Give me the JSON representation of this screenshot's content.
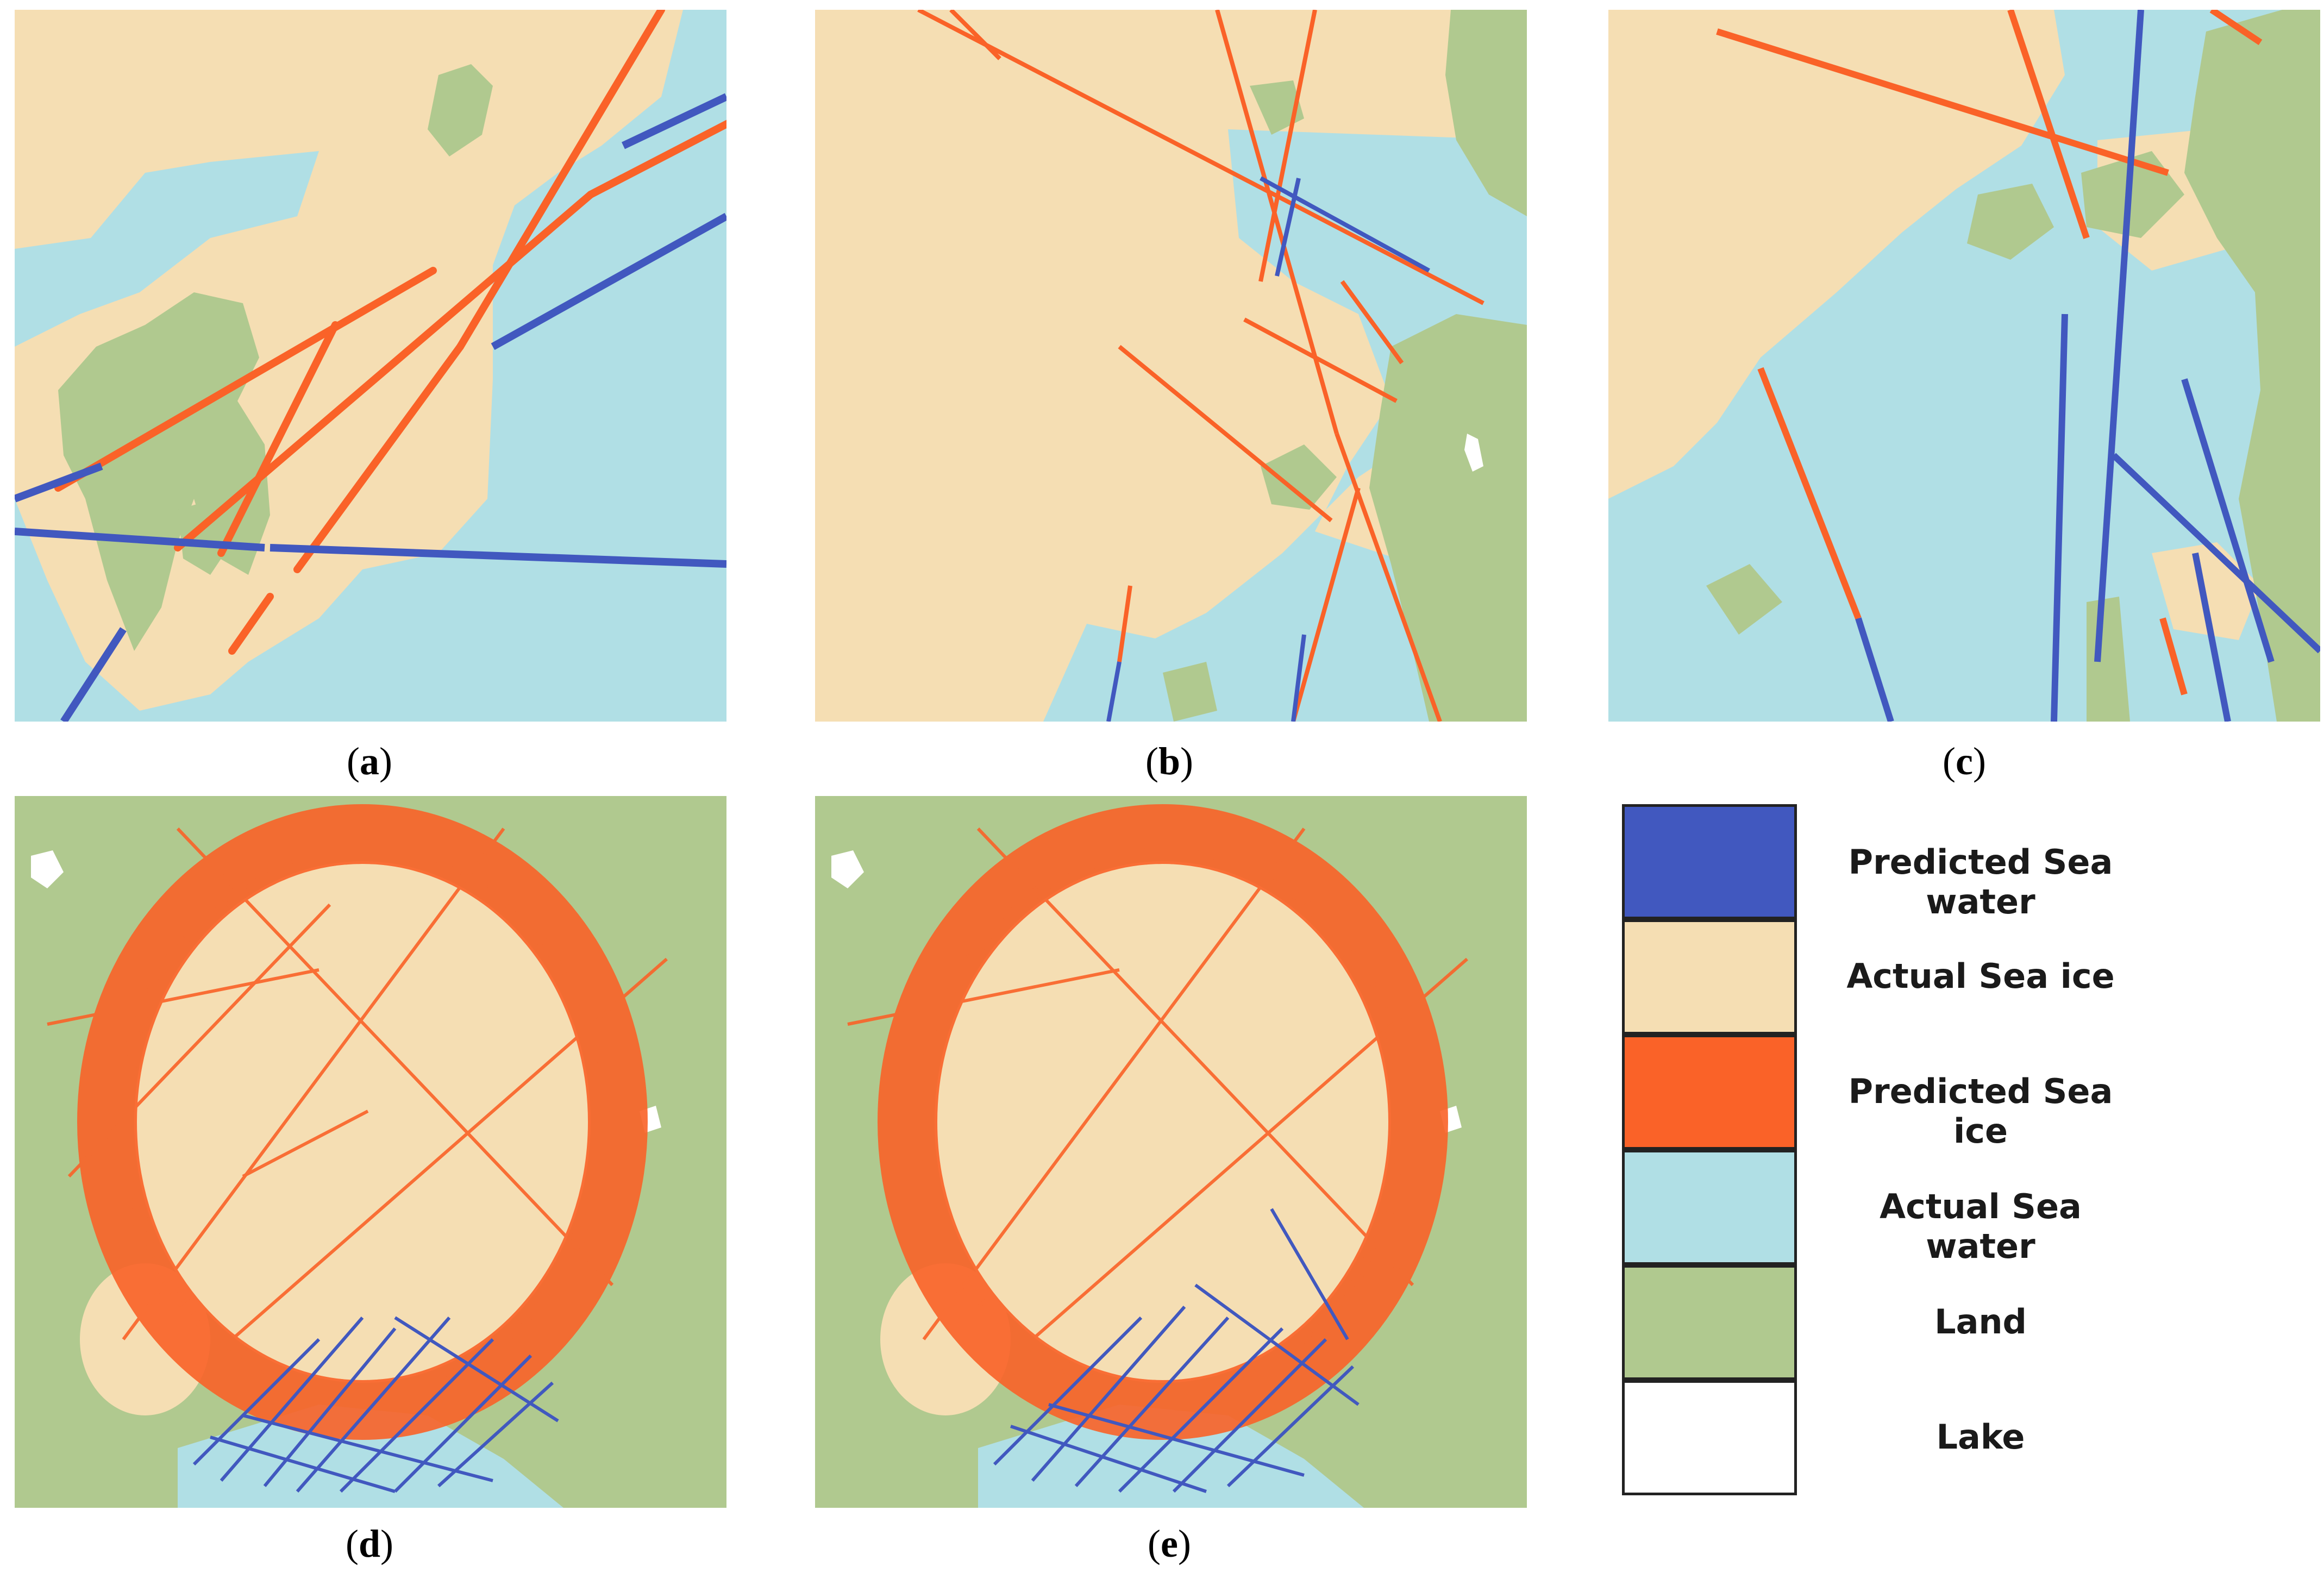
{
  "colors": {
    "predicted_sea_water": "#4158bf",
    "actual_sea_ice": "#f5deb3",
    "predicted_sea_ice": "#fa6228",
    "actual_sea_water": "#b0dfe5",
    "land": "#b0c98f",
    "lake": "#ffffff"
  },
  "panels": [
    {
      "id": "a",
      "caption": "(a)"
    },
    {
      "id": "b",
      "caption": "(b)"
    },
    {
      "id": "c",
      "caption": "(c)"
    },
    {
      "id": "d",
      "caption": "(d)"
    },
    {
      "id": "e",
      "caption": "(e)"
    }
  ],
  "legend": {
    "items": [
      {
        "label": "Predicted Sea water",
        "color_key": "predicted_sea_water"
      },
      {
        "label": "Actual Sea ice",
        "color_key": "actual_sea_ice"
      },
      {
        "label": "Predicted Sea ice",
        "color_key": "predicted_sea_ice"
      },
      {
        "label": "Actual Sea water",
        "color_key": "actual_sea_water"
      },
      {
        "label": "Land",
        "color_key": "land"
      },
      {
        "label": "Lake",
        "color_key": "lake"
      }
    ]
  }
}
